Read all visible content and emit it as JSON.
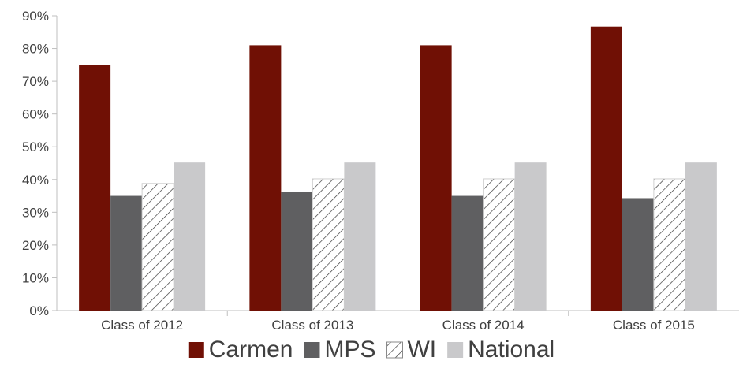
{
  "chart_data": {
    "type": "bar",
    "categories": [
      "Class of 2012",
      "Class of 2013",
      "Class of 2014",
      "Class of 2015"
    ],
    "series": [
      {
        "name": "Carmen",
        "values": [
          75,
          81,
          81,
          86.7
        ],
        "color": "#701005",
        "pattern": "solid"
      },
      {
        "name": "MPS",
        "values": [
          35,
          36.2,
          35,
          34.3
        ],
        "color": "#5f5f61",
        "pattern": "solid"
      },
      {
        "name": "WI",
        "values": [
          38.8,
          40.2,
          40.2,
          40.2
        ],
        "color": "#ffffff",
        "pattern": "diagonal-hatch"
      },
      {
        "name": "National",
        "values": [
          45.2,
          45.2,
          45.2,
          45.2
        ],
        "color": "#c9c9cb",
        "pattern": "solid"
      }
    ],
    "y_ticks": [
      "0%",
      "10%",
      "20%",
      "30%",
      "40%",
      "50%",
      "60%",
      "70%",
      "80%",
      "90%"
    ],
    "ylim": [
      0,
      90
    ],
    "y_unit": "%",
    "title": "",
    "xlabel": "",
    "ylabel": "",
    "grid": false,
    "legend_position": "bottom"
  }
}
